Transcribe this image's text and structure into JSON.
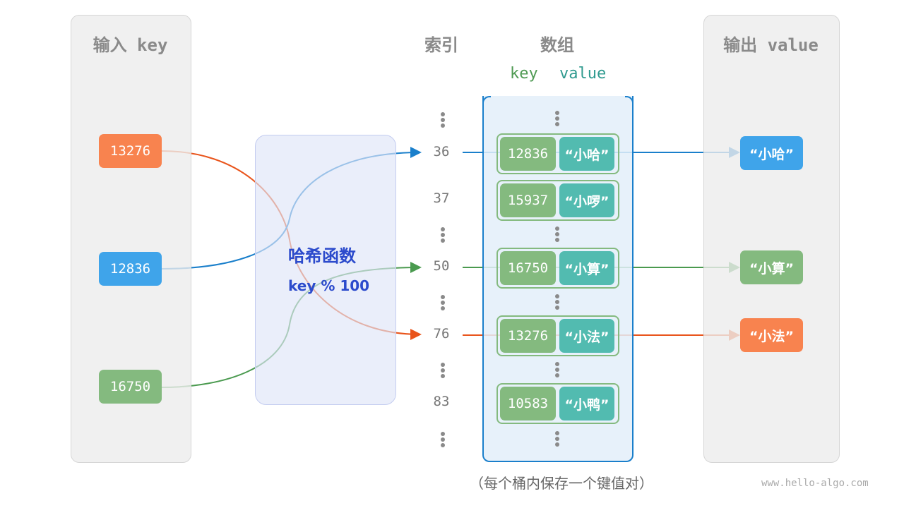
{
  "input_panel": {
    "title": "输入 key",
    "keys": [
      "13276",
      "12836",
      "16750"
    ]
  },
  "hash_function": {
    "title": "哈希函数",
    "formula": "key % 100"
  },
  "index_column": {
    "title": "索引",
    "indices": [
      "36",
      "37",
      "50",
      "76",
      "83"
    ]
  },
  "array": {
    "title": "数组",
    "key_header": "key",
    "value_header": "value",
    "buckets": [
      {
        "key": "12836",
        "value": "“小哈”"
      },
      {
        "key": "15937",
        "value": "“小啰”"
      },
      {
        "key": "16750",
        "value": "“小算”"
      },
      {
        "key": "13276",
        "value": "“小法”"
      },
      {
        "key": "10583",
        "value": "“小鸭”"
      }
    ]
  },
  "output_panel": {
    "title": "输出 value",
    "values": [
      "“小哈”",
      "“小算”",
      "“小法”"
    ]
  },
  "caption": "（每个桶内保存一个键值对）",
  "watermark": "www.hello-algo.com",
  "colors": {
    "orange": "#f8834f",
    "blue": "#3fa4ea",
    "green": "#84ba7f",
    "teal": "#52bbb0",
    "hash_text": "#2c4bcc",
    "array_border": "#1a7fcb"
  }
}
